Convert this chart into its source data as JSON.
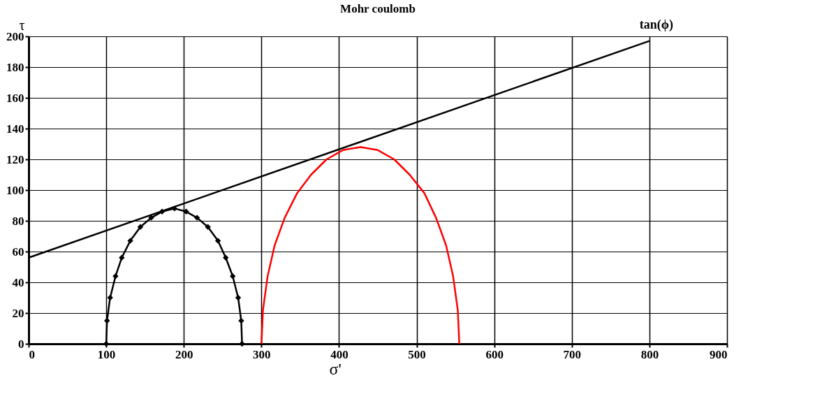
{
  "chart_data": {
    "type": "line",
    "title": "Mohr coulomb",
    "xlabel": "σ'",
    "ylabel": "τ",
    "xlim": [
      0,
      900
    ],
    "xticks": [
      0,
      100,
      200,
      300,
      400,
      500,
      600,
      700,
      800,
      900
    ],
    "ylim": [
      0,
      200
    ],
    "yticks": [
      0,
      20,
      40,
      60,
      80,
      100,
      120,
      140,
      160,
      180,
      200
    ],
    "grid": true,
    "line_style": "solid",
    "annotations": [
      {
        "text": "tan(ϕ)",
        "x": 800,
        "y": 197
      }
    ],
    "series": [
      {
        "color": "#000000",
        "marker": "none",
        "x": [
          0,
          800
        ],
        "values": [
          56,
          197
        ]
      },
      {
        "color": "#000000",
        "marker": "diamond",
        "x": [
          100,
          101,
          105,
          112,
          120,
          131,
          144,
          158,
          172,
          188,
          203,
          217,
          231,
          244,
          254,
          263,
          270,
          274,
          275
        ],
        "values": [
          0,
          15,
          30,
          44,
          56,
          67,
          76,
          82,
          86,
          88,
          86,
          82,
          76,
          67,
          56,
          44,
          30,
          15,
          0
        ]
      },
      {
        "color": "#ff0000",
        "marker": "none",
        "x": [
          300,
          302,
          308,
          317,
          330,
          346,
          364,
          384,
          405,
          428,
          450,
          471,
          491,
          510,
          525,
          538,
          547,
          553,
          555
        ],
        "values": [
          0,
          22,
          44,
          64,
          82,
          98,
          110,
          120,
          126,
          128,
          126,
          120,
          110,
          98,
          82,
          64,
          44,
          22,
          0
        ]
      }
    ]
  }
}
